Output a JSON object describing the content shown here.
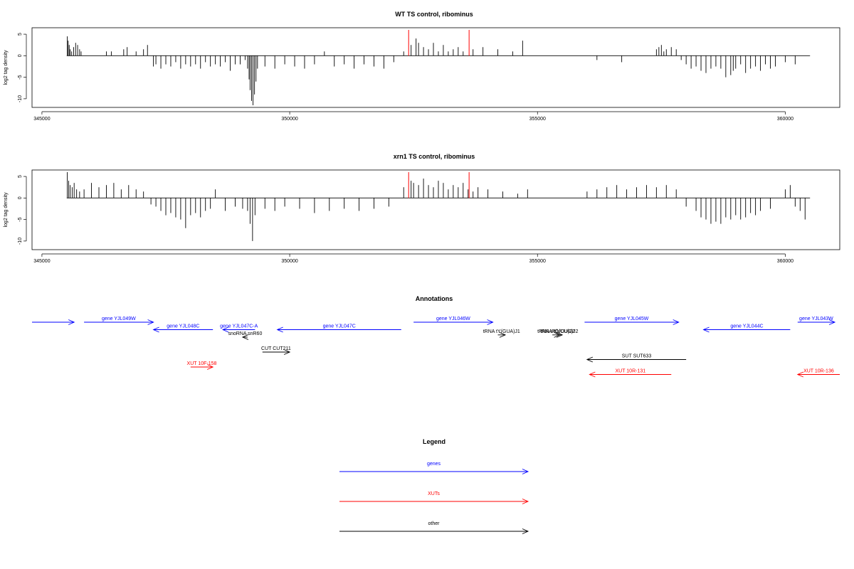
{
  "chart_data": [
    {
      "type": "bar",
      "title": "WT TS control, ribominus",
      "xlabel": "",
      "ylabel": "log2 tag density",
      "xlim": [
        344800,
        361100
      ],
      "ylim": [
        -12,
        6.5
      ],
      "xticks": [
        "345000",
        "350000",
        "355000",
        "360000"
      ],
      "yticks": [
        "5",
        "0",
        "-5",
        "-10"
      ],
      "grid": false,
      "legend": "none",
      "baseline": {
        "x": [
          345500,
          360500
        ]
      },
      "highlight_lines": {
        "color": "#ff0000",
        "x": [
          352400,
          353620
        ],
        "value": 6
      },
      "series": [
        {
          "color": "#000000",
          "x": [
            345510,
            345530,
            345550,
            345570,
            345600,
            345640,
            345680,
            345720,
            345760,
            345790,
            346300,
            346400,
            346650,
            346720,
            346900,
            347050,
            347130,
            347250,
            347300,
            347400,
            347500,
            347600,
            347700,
            347800,
            347900,
            348000,
            348100,
            348200,
            348300,
            348400,
            348500,
            348600,
            348700,
            348800,
            348900,
            349000,
            349100,
            349150,
            349180,
            349200,
            349230,
            349260,
            349290,
            349320,
            349350,
            349500,
            349700,
            349900,
            350100,
            350300,
            350500,
            350700,
            350900,
            351100,
            351300,
            351500,
            351700,
            351900,
            352100,
            352300,
            352450,
            352550,
            352600,
            352700,
            352800,
            352900,
            353000,
            353100,
            353200,
            353300,
            353400,
            353500,
            353700,
            353900,
            354200,
            354500,
            354700,
            356200,
            356700,
            357400,
            357450,
            357500,
            357550,
            357600,
            357700,
            357800,
            357900,
            358000,
            358100,
            358200,
            358300,
            358400,
            358500,
            358600,
            358700,
            358800,
            358900,
            358950,
            359000,
            359100,
            359200,
            359300,
            359400,
            359500,
            359600,
            359700,
            359800,
            360000,
            360200
          ],
          "values": [
            4.5,
            3.5,
            2.5,
            1.5,
            1.0,
            2.0,
            3.0,
            2.5,
            1.5,
            1.0,
            1.0,
            1.0,
            1.5,
            2.0,
            1.0,
            1.5,
            2.5,
            -2.5,
            -2.0,
            -3.0,
            -2.0,
            -2.5,
            -1.5,
            -3.0,
            -2.0,
            -2.5,
            -2.0,
            -3.0,
            -1.5,
            -2.5,
            -2.0,
            -2.5,
            -1.5,
            -3.5,
            -2.0,
            -2.0,
            -1.0,
            -3.0,
            -5.5,
            -8.0,
            -10.5,
            -11.5,
            -9.0,
            -6.0,
            -3.0,
            -2.5,
            -3.0,
            -2.0,
            -2.5,
            -3.0,
            -2.0,
            1.0,
            -2.5,
            -2.0,
            -3.0,
            -2.0,
            -2.5,
            -3.0,
            -1.5,
            1.0,
            2.5,
            4.0,
            3.0,
            2.0,
            1.5,
            3.0,
            1.0,
            2.5,
            1.0,
            1.5,
            2.0,
            1.0,
            1.5,
            2.0,
            1.5,
            1.0,
            3.5,
            -1.0,
            -1.5,
            1.5,
            2.0,
            2.5,
            1.0,
            1.5,
            2.0,
            1.5,
            -1.0,
            -2.0,
            -3.0,
            -2.5,
            -3.5,
            -4.0,
            -3.0,
            -2.5,
            -3.0,
            -5.0,
            -4.5,
            -3.5,
            -3.0,
            -2.0,
            -4.0,
            -3.0,
            -2.5,
            -3.5,
            -2.0,
            -3.0,
            -2.5,
            -1.5,
            -2.0
          ]
        }
      ]
    },
    {
      "type": "bar",
      "title": "xrn1 TS control, ribominus",
      "xlabel": "",
      "ylabel": "log2 tag density",
      "xlim": [
        344800,
        361100
      ],
      "ylim": [
        -12,
        6.5
      ],
      "xticks": [
        "345000",
        "350000",
        "355000",
        "360000"
      ],
      "yticks": [
        "5",
        "0",
        "-5",
        "-10"
      ],
      "grid": false,
      "legend": "none",
      "baseline": {
        "x": [
          345500,
          360500
        ]
      },
      "highlight_lines": {
        "color": "#ff0000",
        "x": [
          352400,
          353620
        ],
        "value": 6
      },
      "series": [
        {
          "color": "#000000",
          "x": [
            345510,
            345540,
            345570,
            345610,
            345650,
            345700,
            345760,
            345850,
            346000,
            346150,
            346300,
            346450,
            346600,
            346750,
            346900,
            347050,
            347200,
            347300,
            347400,
            347500,
            347600,
            347700,
            347800,
            347900,
            348000,
            348100,
            348200,
            348300,
            348400,
            348500,
            348700,
            348900,
            349050,
            349150,
            349200,
            349250,
            349300,
            349500,
            349700,
            349900,
            350200,
            350500,
            350800,
            351100,
            351400,
            351700,
            352000,
            352300,
            352450,
            352500,
            352600,
            352700,
            352800,
            352900,
            353000,
            353100,
            353200,
            353300,
            353400,
            353500,
            353600,
            353700,
            353800,
            354000,
            354300,
            354600,
            354800,
            356000,
            356200,
            356400,
            356600,
            356800,
            357000,
            357200,
            357400,
            357600,
            357800,
            358000,
            358200,
            358300,
            358400,
            358500,
            358600,
            358700,
            358800,
            358900,
            359000,
            359100,
            359200,
            359300,
            359400,
            359500,
            359700,
            360000,
            360100,
            360200,
            360300,
            360400
          ],
          "values": [
            6.0,
            4.0,
            3.0,
            2.5,
            3.5,
            2.0,
            1.5,
            2.0,
            3.5,
            2.5,
            3.0,
            3.5,
            2.0,
            3.0,
            2.0,
            1.5,
            -1.5,
            -2.0,
            -3.0,
            -4.0,
            -3.5,
            -4.5,
            -5.0,
            -7.0,
            -4.0,
            -3.5,
            -4.5,
            -3.0,
            -2.5,
            2.0,
            -3.0,
            -2.0,
            -2.5,
            -3.0,
            -6.0,
            -10.0,
            -4.0,
            -2.5,
            -3.0,
            -2.0,
            -2.5,
            -3.5,
            -3.0,
            -2.5,
            -3.0,
            -2.5,
            -2.0,
            2.5,
            4.0,
            3.5,
            3.0,
            4.5,
            3.0,
            2.5,
            4.0,
            3.5,
            2.0,
            3.0,
            2.5,
            3.5,
            2.0,
            1.5,
            2.5,
            2.0,
            1.5,
            1.0,
            2.0,
            1.5,
            2.0,
            2.5,
            3.0,
            2.0,
            2.5,
            3.0,
            2.5,
            3.0,
            2.0,
            -2.0,
            -3.0,
            -4.5,
            -5.0,
            -6.0,
            -5.5,
            -6.0,
            -4.5,
            -5.0,
            -4.0,
            -5.0,
            -4.5,
            -3.5,
            -4.0,
            -3.0,
            -2.5,
            2.0,
            3.0,
            -2.0,
            -3.0,
            -5.0
          ]
        }
      ]
    },
    {
      "type": "table",
      "title": "Annotations",
      "xlim": [
        344800,
        361100
      ],
      "features": [
        {
          "label": "",
          "start": 344800,
          "end": 345650,
          "strand": "+",
          "color": "#0000ff",
          "row": 0
        },
        {
          "label": "gene YJL049W",
          "start": 345850,
          "end": 347250,
          "strand": "+",
          "color": "#0000ff",
          "row": 0
        },
        {
          "label": "gene YJL048C",
          "start": 347250,
          "end": 348450,
          "strand": "-",
          "color": "#0000ff",
          "row": 1
        },
        {
          "label": "gene YJL047C-A",
          "start": 348650,
          "end": 349300,
          "strand": "-",
          "color": "#0000ff",
          "row": 1
        },
        {
          "label": "gene YJL047C",
          "start": 349750,
          "end": 352250,
          "strand": "-",
          "color": "#0000ff",
          "row": 1
        },
        {
          "label": "snoRNA snR60",
          "start": 349050,
          "end": 349150,
          "strand": "-",
          "color": "#000000",
          "row": 2
        },
        {
          "label": "CUT CUT211",
          "start": 349450,
          "end": 350000,
          "strand": "+",
          "color": "#000000",
          "row": 4
        },
        {
          "label": "XUT 10F-158",
          "start": 348000,
          "end": 348450,
          "strand": "+",
          "color": "#ff0000",
          "row": 6
        },
        {
          "label": "gene YJL046W",
          "start": 352500,
          "end": 354100,
          "strand": "+",
          "color": "#0000ff",
          "row": 0
        },
        {
          "label": "tRNA tY(GUA)J1",
          "start": 354200,
          "end": 354350,
          "strand": "+",
          "color": "#000000",
          "row": 1.7
        },
        {
          "label": "tRNA tR(UCU)J2",
          "start": 355300,
          "end": 355450,
          "strand": "+",
          "color": "#000000",
          "row": 1.7
        },
        {
          "label": "tRNA tQ(UUG)J2",
          "start": 355380,
          "end": 355500,
          "strand": "+",
          "color": "#000000",
          "row": 1.7
        },
        {
          "label": "gene YJL045W",
          "start": 355950,
          "end": 357850,
          "strand": "+",
          "color": "#0000ff",
          "row": 0
        },
        {
          "label": "SUT SUT633",
          "start": 356000,
          "end": 358000,
          "strand": "-",
          "color": "#000000",
          "row": 5
        },
        {
          "label": "XUT 10R-131",
          "start": 356050,
          "end": 357700,
          "strand": "-",
          "color": "#ff0000",
          "row": 7
        },
        {
          "label": "gene YJL044C",
          "start": 358350,
          "end": 360100,
          "strand": "-",
          "color": "#0000ff",
          "row": 1
        },
        {
          "label": "gene YJL043W",
          "start": 360250,
          "end": 361000,
          "strand": "+",
          "color": "#0000ff",
          "row": 0
        },
        {
          "label": "XUT 10R-136",
          "start": 360250,
          "end": 361100,
          "strand": "-",
          "color": "#ff0000",
          "row": 7
        }
      ]
    }
  ],
  "legend": {
    "title": "Legend",
    "items": [
      {
        "label": "genes",
        "color": "#0000ff"
      },
      {
        "label": "XUTs",
        "color": "#ff0000"
      },
      {
        "label": "other",
        "color": "#000000"
      }
    ]
  }
}
